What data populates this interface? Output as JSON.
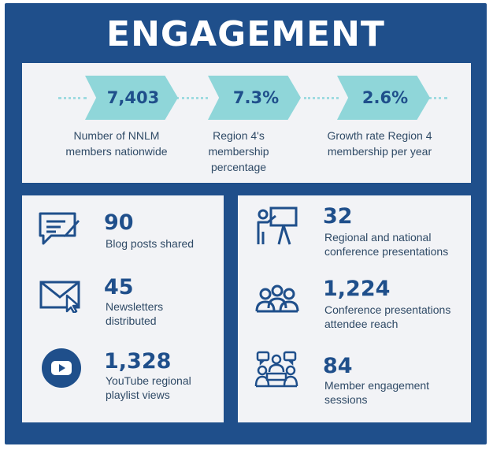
{
  "title": "ENGAGEMENT",
  "stats": [
    {
      "value": "7,403",
      "label": [
        "Number of NNLM",
        "members nationwide"
      ]
    },
    {
      "value": "7.3%",
      "label": [
        "Region 4's",
        "membership",
        "percentage"
      ]
    },
    {
      "value": "2.6%",
      "label": [
        "Growth rate Region 4",
        "membership per year"
      ]
    }
  ],
  "left_items": [
    {
      "icon": "blog-post-icon",
      "value": "90",
      "label": [
        "Blog posts shared"
      ]
    },
    {
      "icon": "newsletter-envelope-icon",
      "value": "45",
      "label": [
        "Newsletters",
        "distributed"
      ]
    },
    {
      "icon": "youtube-play-icon",
      "value": "1,328",
      "label": [
        "YouTube regional",
        "playlist views"
      ]
    }
  ],
  "right_items": [
    {
      "icon": "presenter-easel-icon",
      "value": "32",
      "label": [
        "Regional and national",
        "conference presentations"
      ]
    },
    {
      "icon": "audience-group-icon",
      "value": "1,224",
      "label": [
        "Conference presentations",
        "attendee reach"
      ]
    },
    {
      "icon": "discussion-group-icon",
      "value": "84",
      "label": [
        "Member engagement",
        "sessions"
      ]
    }
  ],
  "colors": {
    "navy": "#1f4f8b",
    "teal": "#8fd6d9",
    "panel": "#f2f3f6",
    "text": "#2f4a66"
  }
}
